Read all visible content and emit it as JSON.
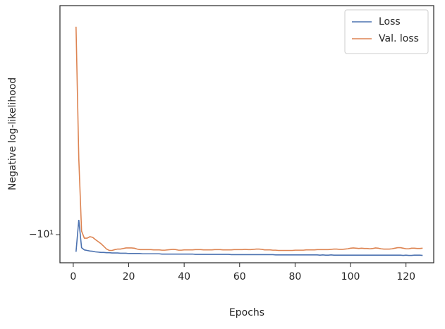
{
  "chart_data": {
    "type": "line",
    "xlabel": "Epochs",
    "ylabel": "Negative log-likelihood",
    "x": [
      1,
      2,
      3,
      4,
      5,
      6,
      7,
      8,
      9,
      10,
      11,
      12,
      13,
      14,
      15,
      16,
      17,
      18,
      19,
      20,
      21,
      22,
      23,
      24,
      25,
      26,
      27,
      28,
      29,
      30,
      31,
      32,
      33,
      34,
      35,
      36,
      37,
      38,
      39,
      40,
      41,
      42,
      43,
      44,
      45,
      46,
      47,
      48,
      49,
      50,
      51,
      52,
      53,
      54,
      55,
      56,
      57,
      58,
      59,
      60,
      61,
      62,
      63,
      64,
      65,
      66,
      67,
      68,
      69,
      70,
      71,
      72,
      73,
      74,
      75,
      76,
      77,
      78,
      79,
      80,
      81,
      82,
      83,
      84,
      85,
      86,
      87,
      88,
      89,
      90,
      91,
      92,
      93,
      94,
      95,
      96,
      97,
      98,
      99,
      100,
      101,
      102,
      103,
      104,
      105,
      106,
      107,
      108,
      109,
      110,
      111,
      112,
      113,
      114,
      115,
      116,
      117,
      118,
      119,
      120,
      121,
      122,
      123,
      124,
      125,
      126
    ],
    "series": [
      {
        "name": "Loss",
        "color": "#4c72b0",
        "values": [
          -10.6,
          -9.51,
          -10.45,
          -10.53,
          -10.55,
          -10.57,
          -10.58,
          -10.6,
          -10.61,
          -10.62,
          -10.62,
          -10.63,
          -10.63,
          -10.64,
          -10.64,
          -10.64,
          -10.65,
          -10.65,
          -10.65,
          -10.66,
          -10.66,
          -10.66,
          -10.66,
          -10.66,
          -10.67,
          -10.67,
          -10.67,
          -10.67,
          -10.67,
          -10.67,
          -10.67,
          -10.68,
          -10.68,
          -10.68,
          -10.68,
          -10.68,
          -10.68,
          -10.68,
          -10.68,
          -10.68,
          -10.68,
          -10.68,
          -10.68,
          -10.69,
          -10.69,
          -10.69,
          -10.69,
          -10.69,
          -10.69,
          -10.69,
          -10.69,
          -10.69,
          -10.69,
          -10.69,
          -10.69,
          -10.69,
          -10.7,
          -10.7,
          -10.7,
          -10.7,
          -10.7,
          -10.7,
          -10.7,
          -10.7,
          -10.7,
          -10.7,
          -10.7,
          -10.7,
          -10.7,
          -10.7,
          -10.7,
          -10.7,
          -10.71,
          -10.71,
          -10.71,
          -10.71,
          -10.71,
          -10.71,
          -10.71,
          -10.71,
          -10.71,
          -10.71,
          -10.71,
          -10.71,
          -10.71,
          -10.71,
          -10.71,
          -10.71,
          -10.72,
          -10.71,
          -10.72,
          -10.72,
          -10.71,
          -10.72,
          -10.72,
          -10.72,
          -10.72,
          -10.72,
          -10.72,
          -10.72,
          -10.72,
          -10.72,
          -10.72,
          -10.72,
          -10.72,
          -10.72,
          -10.72,
          -10.72,
          -10.72,
          -10.72,
          -10.72,
          -10.72,
          -10.72,
          -10.72,
          -10.72,
          -10.72,
          -10.72,
          -10.72,
          -10.73,
          -10.72,
          -10.73,
          -10.73,
          -10.72,
          -10.72,
          -10.72,
          -10.73
        ]
      },
      {
        "name": "Val. loss",
        "color": "#dd8452",
        "values": [
          -4.94,
          -7.73,
          -9.88,
          -10.12,
          -10.12,
          -10.07,
          -10.09,
          -10.17,
          -10.24,
          -10.31,
          -10.4,
          -10.5,
          -10.55,
          -10.55,
          -10.52,
          -10.5,
          -10.5,
          -10.48,
          -10.46,
          -10.46,
          -10.46,
          -10.47,
          -10.5,
          -10.52,
          -10.52,
          -10.52,
          -10.52,
          -10.52,
          -10.53,
          -10.53,
          -10.53,
          -10.54,
          -10.54,
          -10.53,
          -10.52,
          -10.51,
          -10.52,
          -10.54,
          -10.54,
          -10.53,
          -10.53,
          -10.53,
          -10.53,
          -10.52,
          -10.52,
          -10.52,
          -10.53,
          -10.53,
          -10.53,
          -10.53,
          -10.52,
          -10.52,
          -10.52,
          -10.53,
          -10.53,
          -10.53,
          -10.53,
          -10.52,
          -10.52,
          -10.52,
          -10.52,
          -10.51,
          -10.52,
          -10.52,
          -10.51,
          -10.5,
          -10.5,
          -10.51,
          -10.53,
          -10.53,
          -10.53,
          -10.54,
          -10.54,
          -10.55,
          -10.55,
          -10.55,
          -10.55,
          -10.55,
          -10.55,
          -10.54,
          -10.54,
          -10.54,
          -10.54,
          -10.53,
          -10.53,
          -10.53,
          -10.53,
          -10.52,
          -10.52,
          -10.52,
          -10.52,
          -10.52,
          -10.51,
          -10.5,
          -10.5,
          -10.51,
          -10.51,
          -10.5,
          -10.49,
          -10.47,
          -10.46,
          -10.47,
          -10.48,
          -10.47,
          -10.48,
          -10.48,
          -10.49,
          -10.48,
          -10.46,
          -10.47,
          -10.49,
          -10.5,
          -10.5,
          -10.5,
          -10.49,
          -10.47,
          -10.45,
          -10.45,
          -10.47,
          -10.49,
          -10.49,
          -10.47,
          -10.47,
          -10.48,
          -10.48,
          -10.47
        ]
      }
    ],
    "xlim": [
      -4.8,
      130
    ],
    "xticks": [
      0,
      20,
      40,
      60,
      80,
      100,
      120
    ],
    "ylim": [
      -11.0,
      -4.6
    ],
    "yticks": [
      {
        "value": -10,
        "label": "−10¹"
      }
    ],
    "yscale": "symlog",
    "legend": "upper right"
  }
}
